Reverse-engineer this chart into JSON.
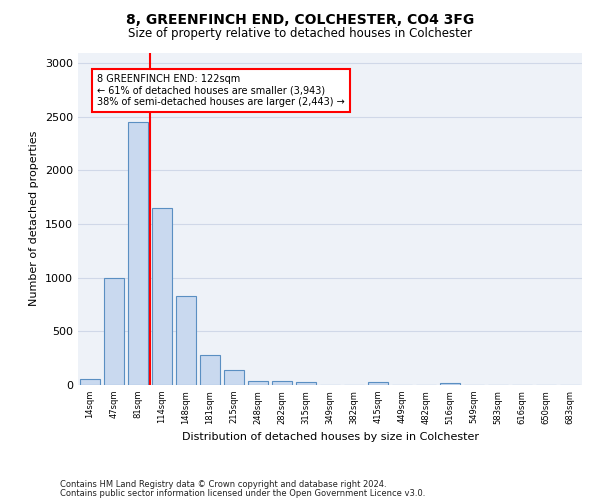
{
  "title1": "8, GREENFINCH END, COLCHESTER, CO4 3FG",
  "title2": "Size of property relative to detached houses in Colchester",
  "xlabel": "Distribution of detached houses by size in Colchester",
  "ylabel": "Number of detached properties",
  "categories": [
    "14sqm",
    "47sqm",
    "81sqm",
    "114sqm",
    "148sqm",
    "181sqm",
    "215sqm",
    "248sqm",
    "282sqm",
    "315sqm",
    "349sqm",
    "382sqm",
    "415sqm",
    "449sqm",
    "482sqm",
    "516sqm",
    "549sqm",
    "583sqm",
    "616sqm",
    "650sqm",
    "683sqm"
  ],
  "values": [
    55,
    1000,
    2450,
    1650,
    830,
    280,
    140,
    40,
    35,
    30,
    0,
    0,
    25,
    0,
    0,
    20,
    0,
    0,
    0,
    0,
    0
  ],
  "bar_color": "#c9d9ef",
  "bar_edge_color": "#5a8fc2",
  "grid_color": "#d0d8e8",
  "background_color": "#eef2f8",
  "vline_x": 2.5,
  "vline_color": "red",
  "annotation_text": "8 GREENFINCH END: 122sqm\n← 61% of detached houses are smaller (3,943)\n38% of semi-detached houses are larger (2,443) →",
  "annotation_box_color": "white",
  "annotation_box_edge": "red",
  "ylim": [
    0,
    3100
  ],
  "yticks": [
    0,
    500,
    1000,
    1500,
    2000,
    2500,
    3000
  ],
  "footer1": "Contains HM Land Registry data © Crown copyright and database right 2024.",
  "footer2": "Contains public sector information licensed under the Open Government Licence v3.0."
}
